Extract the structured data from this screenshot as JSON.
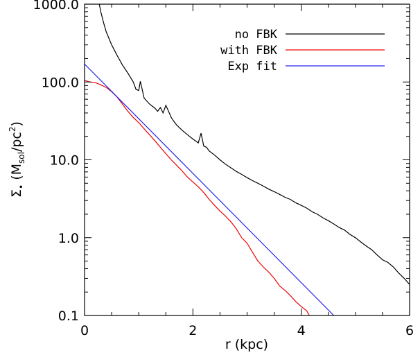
{
  "chart_data": {
    "type": "line",
    "title": "",
    "xlabel": "r (kpc)",
    "ylabel": {
      "prefix": "Σ",
      "prefix_sub": "•",
      "open": " (M",
      "m_sub": "sol",
      "slash": "/pc",
      "pc_sup": "2",
      "close": ")"
    },
    "xlim": [
      0,
      6
    ],
    "ylim": [
      0.1,
      1000
    ],
    "yscale": "log",
    "grid": false,
    "legend_position": "top-right",
    "x_ticks": [
      {
        "value": 0,
        "label": "0"
      },
      {
        "value": 2,
        "label": "2"
      },
      {
        "value": 4,
        "label": "4"
      },
      {
        "value": 6,
        "label": "6"
      }
    ],
    "y_ticks": [
      {
        "value": 0.1,
        "label": "0.1"
      },
      {
        "value": 1,
        "label": "1.0"
      },
      {
        "value": 10,
        "label": "10.0"
      },
      {
        "value": 100,
        "label": "100.0"
      },
      {
        "value": 1000,
        "label": "1000.0"
      }
    ],
    "series": [
      {
        "name": "no FBK",
        "color": "#000000",
        "x": [
          0.25,
          0.3,
          0.35,
          0.4,
          0.5,
          0.6,
          0.7,
          0.8,
          0.9,
          0.95,
          1.0,
          1.03,
          1.06,
          1.1,
          1.2,
          1.3,
          1.35,
          1.4,
          1.45,
          1.5,
          1.55,
          1.6,
          1.65,
          1.7,
          1.8,
          1.9,
          2.0,
          2.1,
          2.15,
          2.2,
          2.25,
          2.3,
          2.4,
          2.5,
          2.6,
          2.7,
          2.8,
          2.9,
          3.0,
          3.1,
          3.2,
          3.3,
          3.4,
          3.5,
          3.6,
          3.7,
          3.8,
          3.9,
          4.0,
          4.1,
          4.2,
          4.3,
          4.4,
          4.5,
          4.6,
          4.7,
          4.8,
          4.9,
          5.0,
          5.1,
          5.2,
          5.3,
          5.4,
          5.5,
          5.6,
          5.7,
          5.8,
          5.9,
          6.0
        ],
        "y": [
          1200,
          800,
          580,
          440,
          300,
          220,
          165,
          130,
          100,
          80,
          78,
          102,
          82,
          62,
          52,
          46,
          42,
          47,
          40,
          50,
          42,
          35,
          31,
          28,
          24,
          21,
          18.5,
          16.5,
          22,
          15,
          14.5,
          13,
          11.5,
          10,
          8.8,
          7.9,
          7.1,
          6.5,
          5.9,
          5.4,
          5.0,
          4.6,
          4.2,
          3.9,
          3.6,
          3.3,
          3.1,
          2.8,
          2.6,
          2.4,
          2.15,
          2.0,
          1.8,
          1.65,
          1.5,
          1.35,
          1.25,
          1.1,
          1.0,
          0.88,
          0.78,
          0.7,
          0.6,
          0.52,
          0.48,
          0.42,
          0.35,
          0.3,
          0.25
        ]
      },
      {
        "name": "with FBK",
        "color": "#ee0000",
        "x": [
          0.0,
          0.1,
          0.2,
          0.3,
          0.4,
          0.5,
          0.6,
          0.7,
          0.8,
          0.9,
          1.0,
          1.1,
          1.2,
          1.3,
          1.4,
          1.5,
          1.6,
          1.7,
          1.8,
          1.9,
          2.0,
          2.1,
          2.2,
          2.3,
          2.4,
          2.5,
          2.6,
          2.7,
          2.8,
          2.9,
          3.0,
          3.1,
          3.2,
          3.3,
          3.4,
          3.5,
          3.6,
          3.7,
          3.8,
          3.9,
          4.0,
          4.1,
          4.15
        ],
        "y": [
          105,
          100,
          98,
          92,
          85,
          75,
          64,
          52,
          42,
          35,
          30,
          25,
          21,
          17.5,
          14.5,
          12,
          10,
          8.5,
          7.2,
          6.0,
          5.2,
          4.5,
          3.8,
          3.1,
          2.6,
          2.2,
          1.9,
          1.6,
          1.3,
          1.0,
          0.85,
          0.65,
          0.5,
          0.42,
          0.36,
          0.3,
          0.24,
          0.21,
          0.18,
          0.15,
          0.13,
          0.115,
          0.1
        ]
      },
      {
        "name": "Exp fit",
        "color": "#2222ee",
        "x": [
          0,
          4.6
        ],
        "y": [
          170,
          0.1
        ]
      }
    ]
  }
}
